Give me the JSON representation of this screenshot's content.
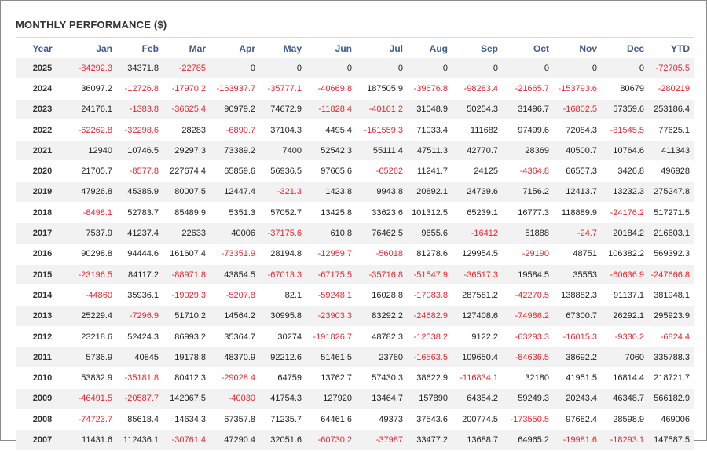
{
  "panel": {
    "title": "MONTHLY PERFORMANCE ($)"
  },
  "colors": {
    "negative": "#e8272f",
    "header": "#3c5a8c",
    "stripe": "#f2f2f2"
  },
  "chart_data": {
    "type": "table",
    "title": "MONTHLY PERFORMANCE ($)",
    "columns": [
      "Year",
      "Jan",
      "Feb",
      "Mar",
      "Apr",
      "May",
      "Jun",
      "Jul",
      "Aug",
      "Sep",
      "Oct",
      "Nov",
      "Dec",
      "YTD"
    ],
    "rows": [
      [
        "2025",
        "-84292.3",
        "34371.8",
        "-22785",
        "0",
        "0",
        "0",
        "0",
        "0",
        "0",
        "0",
        "0",
        "0",
        "-72705.5"
      ],
      [
        "2024",
        "36097.2",
        "-12726.8",
        "-17970.2",
        "-163937.7",
        "-35777.1",
        "-40669.8",
        "187505.9",
        "-39676.8",
        "-98283.4",
        "-21665.7",
        "-153793.6",
        "80679",
        "-280219"
      ],
      [
        "2023",
        "24176.1",
        "-1383.8",
        "-36625.4",
        "90979.2",
        "74672.9",
        "-11828.4",
        "-40161.2",
        "31048.9",
        "50254.3",
        "31496.7",
        "-16802.5",
        "57359.6",
        "253186.4"
      ],
      [
        "2022",
        "-62262.8",
        "-32298.6",
        "28283",
        "-6890.7",
        "37104.3",
        "4495.4",
        "-161559.3",
        "71033.4",
        "111682",
        "97499.6",
        "72084.3",
        "-81545.5",
        "77625.1"
      ],
      [
        "2021",
        "12940",
        "10746.5",
        "29297.3",
        "73389.2",
        "7400",
        "52542.3",
        "55111.4",
        "47511.3",
        "42770.7",
        "28369",
        "40500.7",
        "10764.6",
        "411343"
      ],
      [
        "2020",
        "21705.7",
        "-8577.8",
        "227674.4",
        "65859.6",
        "56936.5",
        "97605.6",
        "-65262",
        "11241.7",
        "24125",
        "-4364.8",
        "66557.3",
        "3426.8",
        "496928"
      ],
      [
        "2019",
        "47926.8",
        "45385.9",
        "80007.5",
        "12447.4",
        "-321.3",
        "1423.8",
        "9943.8",
        "20892.1",
        "24739.6",
        "7156.2",
        "12413.7",
        "13232.3",
        "275247.8"
      ],
      [
        "2018",
        "-8498.1",
        "52783.7",
        "85489.9",
        "5351.3",
        "57052.7",
        "13425.8",
        "33623.6",
        "101312.5",
        "65239.1",
        "16777.3",
        "118889.9",
        "-24176.2",
        "517271.5"
      ],
      [
        "2017",
        "7537.9",
        "41237.4",
        "22633",
        "40006",
        "-37175.6",
        "610.8",
        "76462.5",
        "9655.6",
        "-16412",
        "51888",
        "-24.7",
        "20184.2",
        "216603.1"
      ],
      [
        "2016",
        "90298.8",
        "94444.6",
        "161607.4",
        "-73351.9",
        "28194.8",
        "-12959.7",
        "-56018",
        "81278.6",
        "129954.5",
        "-29190",
        "48751",
        "106382.2",
        "569392.3"
      ],
      [
        "2015",
        "-23196.5",
        "84117.2",
        "-88971.8",
        "43854.5",
        "-67013.3",
        "-67175.5",
        "-35716.8",
        "-51547.9",
        "-36517.3",
        "19584.5",
        "35553",
        "-60636.9",
        "-247666.8"
      ],
      [
        "2014",
        "-44860",
        "35936.1",
        "-19029.3",
        "-5207.8",
        "82.1",
        "-59248.1",
        "16028.8",
        "-17083.8",
        "287581.2",
        "-42270.5",
        "138882.3",
        "91137.1",
        "381948.1"
      ],
      [
        "2013",
        "25229.4",
        "-7296.9",
        "51710.2",
        "14564.2",
        "30995.8",
        "-23903.3",
        "83292.2",
        "-24682.9",
        "127408.6",
        "-74986.2",
        "67300.7",
        "26292.1",
        "295923.9"
      ],
      [
        "2012",
        "23218.6",
        "52424.3",
        "86993.2",
        "35364.7",
        "30274",
        "-191826.7",
        "48782.3",
        "-12538.2",
        "9122.2",
        "-63293.3",
        "-16015.3",
        "-9330.2",
        "-6824.4"
      ],
      [
        "2011",
        "5736.9",
        "40845",
        "19178.8",
        "48370.9",
        "92212.6",
        "51461.5",
        "23780",
        "-16563.5",
        "109650.4",
        "-84636.5",
        "38692.2",
        "7060",
        "335788.3"
      ],
      [
        "2010",
        "53832.9",
        "-35181.8",
        "80412.3",
        "-29028.4",
        "64759",
        "13762.7",
        "57430.3",
        "38622.9",
        "-116834.1",
        "32180",
        "41951.5",
        "16814.4",
        "218721.7"
      ],
      [
        "2009",
        "-46491.5",
        "-20587.7",
        "142067.5",
        "-40030",
        "41754.3",
        "127920",
        "13464.7",
        "157890",
        "64354.2",
        "59249.3",
        "20243.4",
        "46348.7",
        "566182.9"
      ],
      [
        "2008",
        "-74723.7",
        "85618.4",
        "14634.3",
        "67357.8",
        "71235.7",
        "64461.6",
        "49373",
        "37543.6",
        "200774.5",
        "-173550.5",
        "97682.4",
        "28598.9",
        "469006"
      ],
      [
        "2007",
        "11431.6",
        "112436.1",
        "-30761.4",
        "47290.4",
        "32051.6",
        "-60730.2",
        "-37987",
        "33477.2",
        "13688.7",
        "64965.2",
        "-19981.6",
        "-18293.1",
        "147587.5"
      ]
    ]
  }
}
